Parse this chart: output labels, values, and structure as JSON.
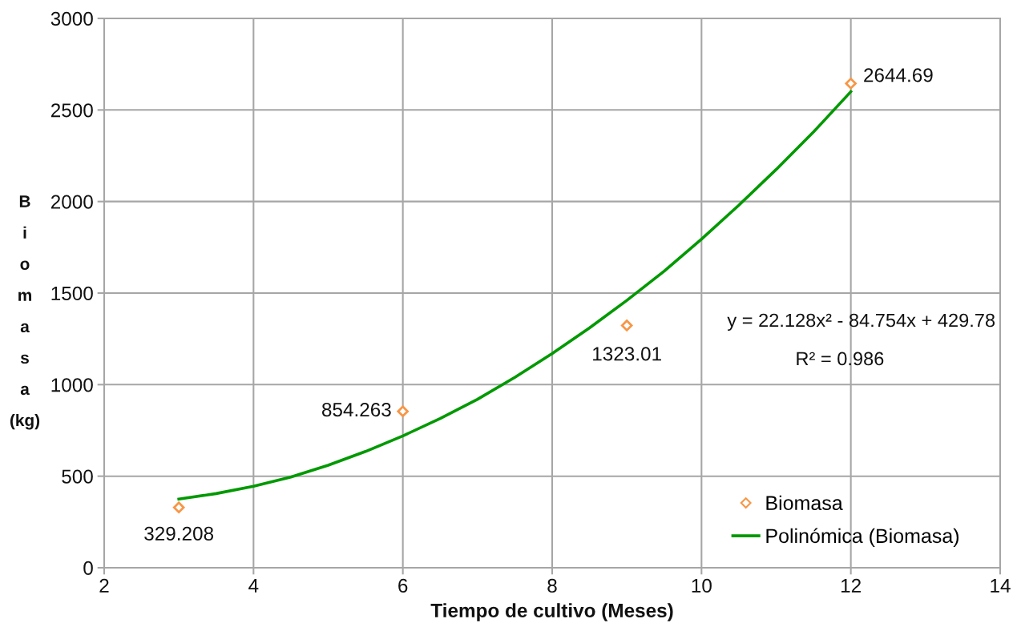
{
  "chart_data": {
    "type": "scatter",
    "xlabel": "Tiempo de cultivo (Meses)",
    "ylabel": "Biomasa (kg)",
    "xlim": [
      2,
      14
    ],
    "xticks": [
      2,
      4,
      6,
      8,
      10,
      12,
      14
    ],
    "ylim": [
      0,
      3000
    ],
    "yticks": [
      0,
      500,
      1000,
      1500,
      2000,
      2500,
      3000
    ],
    "grid": true,
    "legend": "bottom right",
    "marker": "diamond",
    "series": [
      {
        "name": "Biomasa",
        "color": "#f79646",
        "x": [
          3,
          6,
          9,
          12
        ],
        "values": [
          329.208,
          854.263,
          1323.01,
          2644.69
        ],
        "value_labels": [
          "329.208",
          "854.263",
          "1323.01",
          "2644.69"
        ]
      },
      {
        "name": "Polinómica (Biomasa)",
        "type": "line",
        "color": "#009900",
        "marker": "none",
        "line_style": "solid",
        "x": [
          3,
          3.5,
          4,
          4.5,
          5,
          5.5,
          6,
          6.5,
          7,
          7.5,
          8,
          8.5,
          9,
          9.5,
          10,
          10.5,
          11,
          11.5,
          12
        ],
        "values": [
          375,
          405,
          445,
          495,
          560,
          635,
          720,
          815,
          920,
          1040,
          1170,
          1310,
          1460,
          1620,
          1795,
          1980,
          2175,
          2380,
          2600
        ]
      }
    ],
    "annotations": [
      "y = 22.128x² - 84.754x + 429.78",
      "R² = 0.986"
    ]
  }
}
